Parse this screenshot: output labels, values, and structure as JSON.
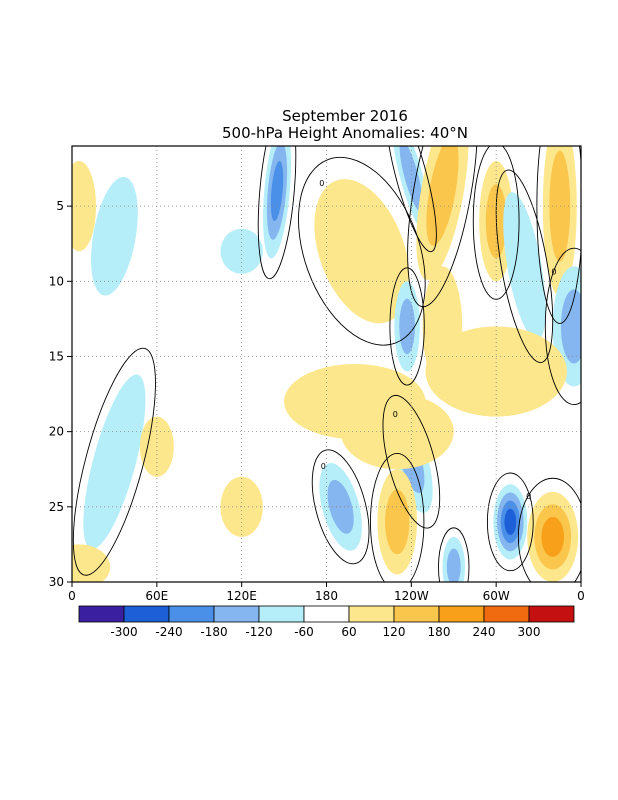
{
  "chart_data": {
    "type": "heatmap",
    "title": "September 2016",
    "subtitle": "500-hPa Height Anomalies: 40°N",
    "x_ticks": [
      "0",
      "60E",
      "120E",
      "180",
      "120W",
      "60W",
      "0"
    ],
    "x_tick_values": [
      0,
      60,
      120,
      180,
      240,
      300,
      360
    ],
    "y_ticks": [
      "5",
      "10",
      "15",
      "20",
      "25",
      "30"
    ],
    "y_tick_values": [
      5,
      10,
      15,
      20,
      25,
      30
    ],
    "xlim": [
      0,
      360
    ],
    "ylim": [
      1,
      30
    ],
    "y_inverted": true,
    "grid": true,
    "contour_label": "0",
    "colorbar": {
      "labels": [
        "-300",
        "-240",
        "-180",
        "-120",
        "-60",
        "60",
        "120",
        "180",
        "240",
        "300"
      ],
      "boundaries": [
        -300,
        -240,
        -180,
        -120,
        -60,
        60,
        120,
        180,
        240,
        300
      ],
      "colors": [
        "#3a1fa0",
        "#1d5fd6",
        "#4a90e8",
        "#86b6f0",
        "#b5eef8",
        "#ffffff",
        "#fde78c",
        "#fbc64c",
        "#f8a01a",
        "#f06a10",
        "#c41010"
      ]
    },
    "anomalies": [
      {
        "lon": 240,
        "day": 3,
        "value": -160,
        "rx": 8,
        "ry": 4,
        "tilt": -15
      },
      {
        "lon": 145,
        "day": 4,
        "value": -190,
        "rx": 9,
        "ry": 4.5,
        "tilt": 5
      },
      {
        "lon": 262,
        "day": 4,
        "value": 170,
        "rx": 15,
        "ry": 6,
        "tilt": 10
      },
      {
        "lon": 300,
        "day": 6,
        "value": 150,
        "rx": 12,
        "ry": 4,
        "tilt": 0
      },
      {
        "lon": 345,
        "day": 5,
        "value": 130,
        "rx": 12,
        "ry": 6,
        "tilt": 0
      },
      {
        "lon": 5,
        "day": 5,
        "value": 80,
        "rx": 12,
        "ry": 3,
        "tilt": 0
      },
      {
        "lon": 30,
        "day": 7,
        "value": -90,
        "rx": 15,
        "ry": 4,
        "tilt": 10
      },
      {
        "lon": 120,
        "day": 8,
        "value": -70,
        "rx": 15,
        "ry": 1.5,
        "tilt": 0
      },
      {
        "lon": 205,
        "day": 8,
        "value": 110,
        "rx": 30,
        "ry": 5,
        "tilt": -20
      },
      {
        "lon": 320,
        "day": 9,
        "value": -100,
        "rx": 12,
        "ry": 5,
        "tilt": -10
      },
      {
        "lon": 355,
        "day": 13,
        "value": -170,
        "rx": 15,
        "ry": 4,
        "tilt": 0
      },
      {
        "lon": 237,
        "day": 13,
        "value": -140,
        "rx": 9,
        "ry": 3,
        "tilt": 0
      },
      {
        "lon": 262,
        "day": 13,
        "value": 80,
        "rx": 14,
        "ry": 4,
        "tilt": 0
      },
      {
        "lon": 200,
        "day": 18,
        "value": 90,
        "rx": 50,
        "ry": 2.5,
        "tilt": 0
      },
      {
        "lon": 300,
        "day": 16,
        "value": 90,
        "rx": 50,
        "ry": 3,
        "tilt": 0
      },
      {
        "lon": 30,
        "day": 22,
        "value": -100,
        "rx": 15,
        "ry": 6,
        "tilt": 15
      },
      {
        "lon": 240,
        "day": 22,
        "value": -150,
        "rx": 12,
        "ry": 3.5,
        "tilt": -15
      },
      {
        "lon": 230,
        "day": 26,
        "value": 170,
        "rx": 14,
        "ry": 3.5,
        "tilt": 0
      },
      {
        "lon": 190,
        "day": 25,
        "value": -170,
        "rx": 13,
        "ry": 3,
        "tilt": -15
      },
      {
        "lon": 310,
        "day": 26,
        "value": -260,
        "rx": 12,
        "ry": 2.5,
        "tilt": 0
      },
      {
        "lon": 340,
        "day": 27,
        "value": 220,
        "rx": 18,
        "ry": 3,
        "tilt": 0
      },
      {
        "lon": 270,
        "day": 29,
        "value": -160,
        "rx": 8,
        "ry": 2,
        "tilt": 0
      },
      {
        "lon": 5,
        "day": 29,
        "value": 80,
        "rx": 22,
        "ry": 1.5,
        "tilt": 0
      },
      {
        "lon": 120,
        "day": 25,
        "value": 80,
        "rx": 15,
        "ry": 2,
        "tilt": 0
      },
      {
        "lon": 60,
        "day": 21,
        "value": 70,
        "rx": 12,
        "ry": 2,
        "tilt": 0
      },
      {
        "lon": 230,
        "day": 20,
        "value": 80,
        "rx": 40,
        "ry": 2.5,
        "tilt": 0
      }
    ]
  }
}
